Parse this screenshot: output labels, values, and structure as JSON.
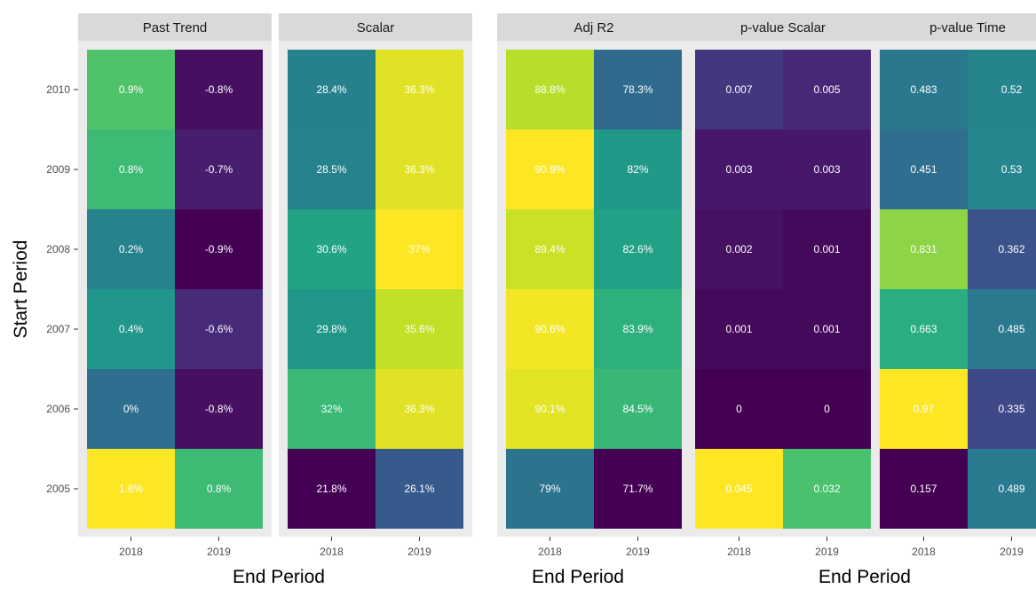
{
  "chart_data": {
    "type": "heatmap",
    "xlabel": "End Period",
    "ylabel": "Start Period",
    "x_categories": [
      "2018",
      "2019"
    ],
    "y_categories": [
      "2010",
      "2009",
      "2008",
      "2007",
      "2006",
      "2005"
    ],
    "grid": false,
    "colormap": "viridis",
    "panels": [
      {
        "title": "Past Trend",
        "values": [
          [
            0.9,
            -0.8
          ],
          [
            0.8,
            -0.7
          ],
          [
            0.2,
            -0.9
          ],
          [
            0.4,
            -0.6
          ],
          [
            0.0,
            -0.8
          ],
          [
            1.6,
            0.8
          ]
        ],
        "labels": [
          [
            "0.9%",
            "-0.8%"
          ],
          [
            "0.8%",
            "-0.7%"
          ],
          [
            "0.2%",
            "-0.9%"
          ],
          [
            "0.4%",
            "-0.6%"
          ],
          [
            "0%",
            "-0.8%"
          ],
          [
            "1.6%",
            "0.8%"
          ]
        ]
      },
      {
        "title": "Scalar",
        "values": [
          [
            28.4,
            36.3
          ],
          [
            28.5,
            36.3
          ],
          [
            30.6,
            37.0
          ],
          [
            29.8,
            35.6
          ],
          [
            32.0,
            36.3
          ],
          [
            21.8,
            26.1
          ]
        ],
        "labels": [
          [
            "28.4%",
            "36.3%"
          ],
          [
            "28.5%",
            "36.3%"
          ],
          [
            "30.6%",
            "37%"
          ],
          [
            "29.8%",
            "35.6%"
          ],
          [
            "32%",
            "36.3%"
          ],
          [
            "21.8%",
            "26.1%"
          ]
        ]
      },
      {
        "title": "Adj R2",
        "values": [
          [
            88.8,
            78.3
          ],
          [
            90.9,
            82.0
          ],
          [
            89.4,
            82.6
          ],
          [
            90.6,
            83.9
          ],
          [
            90.1,
            84.5
          ],
          [
            79.0,
            71.7
          ]
        ],
        "labels": [
          [
            "88.8%",
            "78.3%"
          ],
          [
            "90.9%",
            "82%"
          ],
          [
            "89.4%",
            "82.6%"
          ],
          [
            "90.6%",
            "83.9%"
          ],
          [
            "90.1%",
            "84.5%"
          ],
          [
            "79%",
            "71.7%"
          ]
        ]
      },
      {
        "title": "p-value Scalar",
        "values": [
          [
            0.007,
            0.005
          ],
          [
            0.003,
            0.003
          ],
          [
            0.002,
            0.001
          ],
          [
            0.001,
            0.001
          ],
          [
            0.0,
            0.0
          ],
          [
            0.045,
            0.032
          ]
        ],
        "labels": [
          [
            "0.007",
            "0.005"
          ],
          [
            "0.003",
            "0.003"
          ],
          [
            "0.002",
            "0.001"
          ],
          [
            "0.001",
            "0.001"
          ],
          [
            "0",
            "0"
          ],
          [
            "0.045",
            "0.032"
          ]
        ]
      },
      {
        "title": "p-value Time",
        "values": [
          [
            0.483,
            0.52
          ],
          [
            0.451,
            0.53
          ],
          [
            0.831,
            0.362
          ],
          [
            0.663,
            0.485
          ],
          [
            0.97,
            0.335
          ],
          [
            0.157,
            0.489
          ]
        ],
        "labels": [
          [
            "0.483",
            "0.52"
          ],
          [
            "0.451",
            "0.53"
          ],
          [
            "0.831",
            "0.362"
          ],
          [
            "0.663",
            "0.485"
          ],
          [
            "0.97",
            "0.335"
          ],
          [
            "0.157",
            "0.489"
          ]
        ]
      }
    ]
  }
}
